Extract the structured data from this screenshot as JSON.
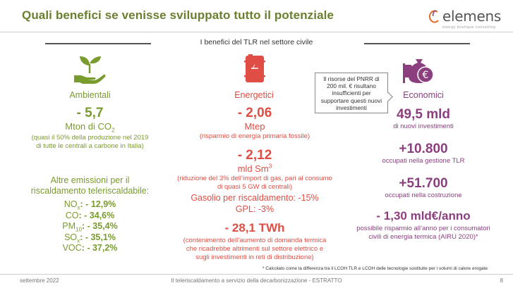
{
  "header": {
    "title": "Quali benefici se venisse sviluppato tutto il potenziale",
    "logo_text": "elemens",
    "logo_tagline": "energy boutique consulting"
  },
  "section_label": "I benefici del TLR nel settore civile",
  "icons": {
    "ambientali": "plant-in-hand-icon",
    "energetici": "oil-barrel-icon",
    "economici": "money-bag-euro-icon"
  },
  "colors": {
    "green": "#7a9b2e",
    "red": "#e04d44",
    "purple": "#8b3f7f",
    "title_green": "#6a7f2f"
  },
  "ambientali": {
    "label": "Ambientali",
    "co2_value": "- 5,7",
    "co2_unit_main": "Mton di CO",
    "co2_unit_sub": "2",
    "co2_note": "(quasi il 50% della produzione nel 2019 di tutte le centrali a carbone in Italia)",
    "other_heading": "Altre emissioni per il riscaldamento teleriscaldabile:",
    "emissions": [
      {
        "name": "NO",
        "sub": "x",
        "value": ": - 12,9%"
      },
      {
        "name": "CO",
        "sub": "",
        "value": ": - 34,6%"
      },
      {
        "name": "PM",
        "sub": "10",
        "value": ": - 35,4%"
      },
      {
        "name": "SO",
        "sub": "x",
        "value": ": - 35,1%"
      },
      {
        "name": "VOC",
        "sub": "",
        "value": ": - 37,2%"
      }
    ]
  },
  "energetici": {
    "label": "Energetici",
    "v1": "- 2,06",
    "v1_unit": "Mtep",
    "v1_note": "(risparmio di energia primaria fossile)",
    "v2": "- 2,12",
    "v2_unit_main": "mld Sm",
    "v2_unit_sup": "3",
    "v2_note": "(riduzione del 3% dell’import di gas, pari al consumo di quasi 5 GW di centrali)",
    "gasolio": "Gasolio per riscaldamento: -15%",
    "gpl": "GPL: -3%",
    "v3": "- 28,1 TWh",
    "v3_note": "(contenimento dell’aumento di domanda termica che ricadrebbe altrimenti sul settore elettrico e sugli investimenti in reti di distribuzione)"
  },
  "economici": {
    "label": "Economici",
    "callout": "Il risorse del PNRR di 200 mil. € risultano insufficienti per supportare questi nuovi investimenti",
    "v1": "49,5 mld",
    "v1_note": "di nuovi investimenti",
    "v2": "+10.800",
    "v2_note": "occupati nella gestione TLR",
    "v3": "+51.700",
    "v3_note": "occupati nella costruzione",
    "v4": "- 1,30 mld€/anno",
    "v4_note": "possibile risparmio all’anno per i consumatori civili di energia termica (AIRU 2020)*"
  },
  "footnote": "* Calcolato come la differenza tra il LCOH TLR e LCOH delle tecnologie sostituite per i volumi di calore erogate",
  "footer": {
    "date": "settembre 2022",
    "center": "Il teleriscaldamento a servizio della decarbonizzazione - ESTRATTO",
    "page": "8"
  }
}
